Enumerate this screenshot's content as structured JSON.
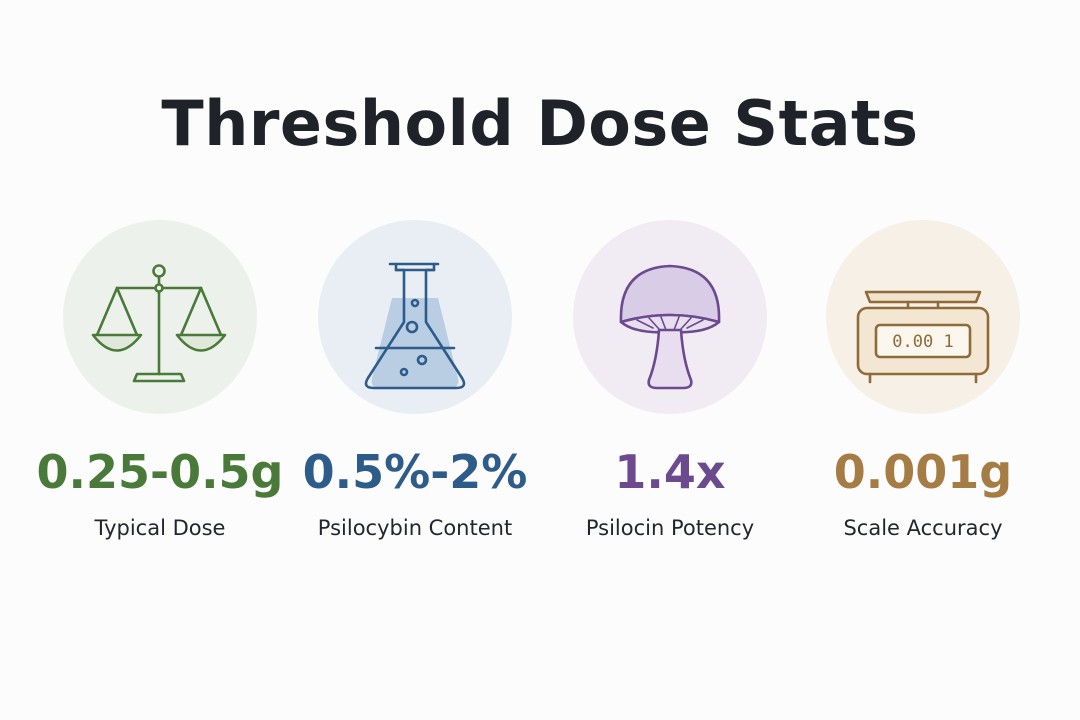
{
  "title": "Threshold Dose Stats",
  "stats": [
    {
      "value": "0.25-0.5g",
      "label": "Typical Dose",
      "icon": "balance-scale-icon",
      "color": "#4a7a3a",
      "circle_color": "#edf1eb"
    },
    {
      "value": "0.5%-2%",
      "label": "Psilocybin Content",
      "icon": "flask-icon",
      "color": "#2e5c8a",
      "circle_color": "#e8eef4"
    },
    {
      "value": "1.4x",
      "label": "Psilocin Potency",
      "icon": "mushroom-icon",
      "color": "#6b4a8e",
      "circle_color": "#f1ecf4"
    },
    {
      "value": "0.001g",
      "label": "Scale Accuracy",
      "icon": "digital-scale-icon",
      "color": "#a67c45",
      "circle_color": "#f7f0e6",
      "display_reading": "0.00 1"
    }
  ]
}
